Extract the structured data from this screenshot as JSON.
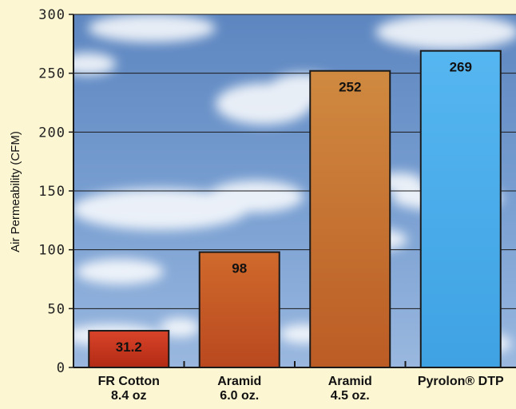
{
  "chart_data": {
    "type": "bar",
    "title": "",
    "xlabel": "",
    "ylabel": "Air Permeability (CFM)",
    "ylim": [
      0,
      300
    ],
    "yticks": [
      0,
      50,
      100,
      150,
      200,
      250,
      300
    ],
    "grid": true,
    "categories": [
      [
        "FR Cotton",
        "8.4 oz"
      ],
      [
        "Aramid",
        "6.0 oz."
      ],
      [
        "Aramid",
        "4.5 oz."
      ],
      [
        "Pyrolon® DTP"
      ]
    ],
    "values": [
      31.2,
      98,
      252,
      269
    ],
    "value_labels": [
      "31.2",
      "98",
      "252",
      "269"
    ],
    "colors": {
      "background": "#fdf6d3",
      "sky": "#6f95c8",
      "bar_fills": [
        "#c93a1e",
        "#cc6a2a",
        "#c8863a",
        "#4fb0ea"
      ]
    }
  }
}
